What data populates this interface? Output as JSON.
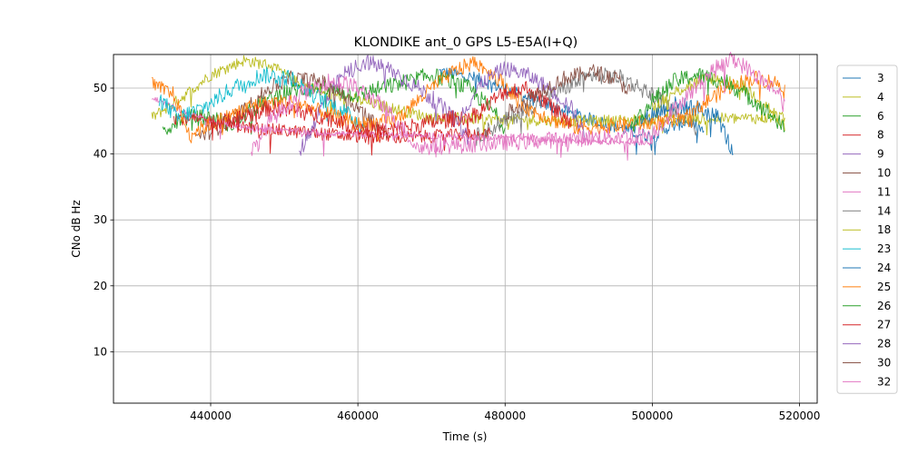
{
  "chart_data": {
    "type": "line",
    "title": "KLONDIKE ant_0 GPS L5-E5A(I+Q)",
    "xlabel": "Time (s)",
    "ylabel": "CNo dB Hz",
    "xlim": [
      426800,
      522400
    ],
    "ylim": [
      2.2,
      55.1
    ],
    "xticks": [
      440000,
      460000,
      480000,
      500000,
      520000
    ],
    "xtick_labels": [
      "440000",
      "460000",
      "480000",
      "500000",
      "520000"
    ],
    "yticks": [
      10,
      20,
      30,
      40,
      50
    ],
    "ytick_labels": [
      "10",
      "20",
      "30",
      "40",
      "50"
    ],
    "grid": true,
    "legend_position": "outside-right",
    "series": [
      {
        "name": "3",
        "color": "#1f77b4",
        "noise": 1.0,
        "x": [
          471000,
          476000,
          482000,
          488000,
          494000,
          500000,
          502000,
          505000,
          507000
        ],
        "y": [
          52.5,
          51.5,
          49.0,
          46.5,
          44.5,
          42.5,
          44.0,
          45.0,
          43.5
        ]
      },
      {
        "name": "4",
        "color": "#bcbd22",
        "noise": 0.9,
        "x": [
          432000,
          436000,
          440000,
          444500,
          448000,
          451500,
          455000,
          470000,
          490000,
          505000,
          518000
        ],
        "y": [
          45.5,
          48.5,
          52.0,
          54.2,
          53.5,
          51.0,
          49.5,
          45.5,
          45.0,
          45.3,
          45.5
        ]
      },
      {
        "name": "6",
        "color": "#2ca02c",
        "noise": 1.3,
        "x": [
          433500,
          436000,
          440000,
          443000,
          446000,
          450000,
          455000,
          460000,
          465000,
          470000,
          475000,
          478000,
          480000
        ],
        "y": [
          43.5,
          45.5,
          45.5,
          44.5,
          47.0,
          49.5,
          50.0,
          49.0,
          50.5,
          52.0,
          50.0,
          47.0,
          44.0
        ]
      },
      {
        "name": "8",
        "color": "#d62728",
        "noise": 1.0,
        "x": [
          435000,
          440000,
          445000,
          450000,
          454000,
          456000,
          458000,
          462000,
          467000,
          472000,
          478000
        ],
        "y": [
          45.5,
          45.0,
          44.0,
          43.5,
          43.2,
          43.0,
          42.8,
          42.6,
          42.5,
          42.8,
          43.0
        ]
      },
      {
        "name": "9",
        "color": "#9467bd",
        "noise": 1.3,
        "x": [
          452000,
          455000,
          458000,
          461000,
          464000,
          467000,
          470000,
          473000,
          475000
        ],
        "y": [
          40.0,
          47.0,
          52.0,
          54.0,
          53.0,
          51.0,
          48.5,
          45.5,
          42.5
        ]
      },
      {
        "name": "10",
        "color": "#8c564b",
        "noise": 1.2,
        "x": [
          438000,
          441000,
          445000,
          448000,
          451000,
          455000,
          458000,
          461000,
          464000
        ],
        "y": [
          42.5,
          44.0,
          47.0,
          50.0,
          51.5,
          51.0,
          49.0,
          46.0,
          43.0
        ]
      },
      {
        "name": "11",
        "color": "#e377c2",
        "noise": 0.5,
        "x": [
          432000,
          436000,
          440000,
          445000,
          450000,
          455000,
          460000,
          470000,
          480000,
          490000,
          500000
        ],
        "y": [
          48.5,
          46.5,
          45.0,
          44.0,
          43.5,
          43.2,
          43.0,
          42.8,
          42.5,
          42.0,
          41.8
        ]
      },
      {
        "name": "14",
        "color": "#7f7f7f",
        "noise": 1.3,
        "x": [
          476000,
          480000,
          484000,
          488000,
          492000,
          496000,
          500000,
          504000,
          506000
        ],
        "y": [
          42.5,
          45.0,
          47.5,
          50.0,
          52.0,
          51.5,
          49.0,
          46.0,
          43.5
        ]
      },
      {
        "name": "18",
        "color": "#bcbd22",
        "noise": 1.1,
        "x": [
          500000,
          504000,
          508000,
          512000,
          515000,
          517000,
          518000
        ],
        "y": [
          47.0,
          50.0,
          51.5,
          50.5,
          48.0,
          45.5,
          43.5
        ]
      },
      {
        "name": "23",
        "color": "#17becf",
        "noise": 1.3,
        "x": [
          433000,
          435500,
          439000,
          443000,
          447000,
          451000,
          454000,
          458000,
          461000
        ],
        "y": [
          48.5,
          45.5,
          47.0,
          50.0,
          52.0,
          51.5,
          49.0,
          46.5,
          44.0
        ]
      },
      {
        "name": "24",
        "color": "#1f77b4",
        "noise": 1.3,
        "x": [
          497000,
          500000,
          503000,
          506000,
          509000,
          511000
        ],
        "y": [
          44.0,
          46.0,
          47.5,
          47.0,
          45.5,
          40.0
        ]
      },
      {
        "name": "25",
        "color": "#ff7f0e",
        "noise": 1.2,
        "x": [
          432000,
          435000,
          437000,
          441000,
          446000,
          451000,
          456000,
          460000,
          465000,
          470000,
          473000,
          476000,
          479000,
          483000,
          487000,
          490000,
          504000,
          508000,
          511000,
          514000,
          518000
        ],
        "y": [
          50.5,
          49.0,
          43.0,
          45.0,
          47.5,
          48.0,
          46.0,
          44.5,
          45.0,
          50.0,
          52.5,
          54.0,
          51.5,
          47.0,
          45.0,
          44.0,
          45.0,
          48.5,
          50.5,
          51.5,
          50.5
        ]
      },
      {
        "name": "26",
        "color": "#2ca02c",
        "noise": 1.3,
        "x": [
          497000,
          500000,
          503000,
          506000,
          510000,
          514000,
          517000,
          518000
        ],
        "y": [
          44.0,
          48.0,
          51.0,
          52.0,
          51.0,
          48.0,
          45.0,
          43.5
        ]
      },
      {
        "name": "27",
        "color": "#d62728",
        "noise": 1.3,
        "x": [
          440000,
          444000,
          448000,
          452000,
          456000,
          460000,
          464000,
          476000,
          480000,
          483000,
          486000,
          489000
        ],
        "y": [
          44.5,
          45.5,
          47.0,
          46.5,
          45.5,
          44.0,
          43.5,
          46.0,
          49.5,
          50.0,
          47.5,
          44.5
        ]
      },
      {
        "name": "28",
        "color": "#9467bd",
        "noise": 1.2,
        "x": [
          474000,
          477000,
          480000,
          483000,
          486000,
          489000,
          491000
        ],
        "y": [
          46.0,
          51.0,
          53.0,
          52.0,
          50.0,
          47.0,
          42.5
        ]
      },
      {
        "name": "30",
        "color": "#8c564b",
        "noise": 1.2,
        "x": [
          480000,
          484000,
          488000,
          492000,
          495000,
          497000
        ],
        "y": [
          46.0,
          49.0,
          51.5,
          52.5,
          51.5,
          49.5
        ]
      },
      {
        "name": "32",
        "color": "#e377c2",
        "noise": 1.3,
        "x": [
          445500,
          448000,
          452000,
          456000,
          459000,
          462000,
          465000,
          468000,
          500000,
          504000,
          508000,
          511000,
          514000,
          517000,
          518000
        ],
        "y": [
          40.0,
          45.0,
          49.0,
          51.0,
          50.5,
          48.5,
          45.5,
          41.0,
          43.0,
          48.0,
          52.5,
          54.5,
          52.0,
          49.5,
          48.0
        ]
      }
    ]
  }
}
